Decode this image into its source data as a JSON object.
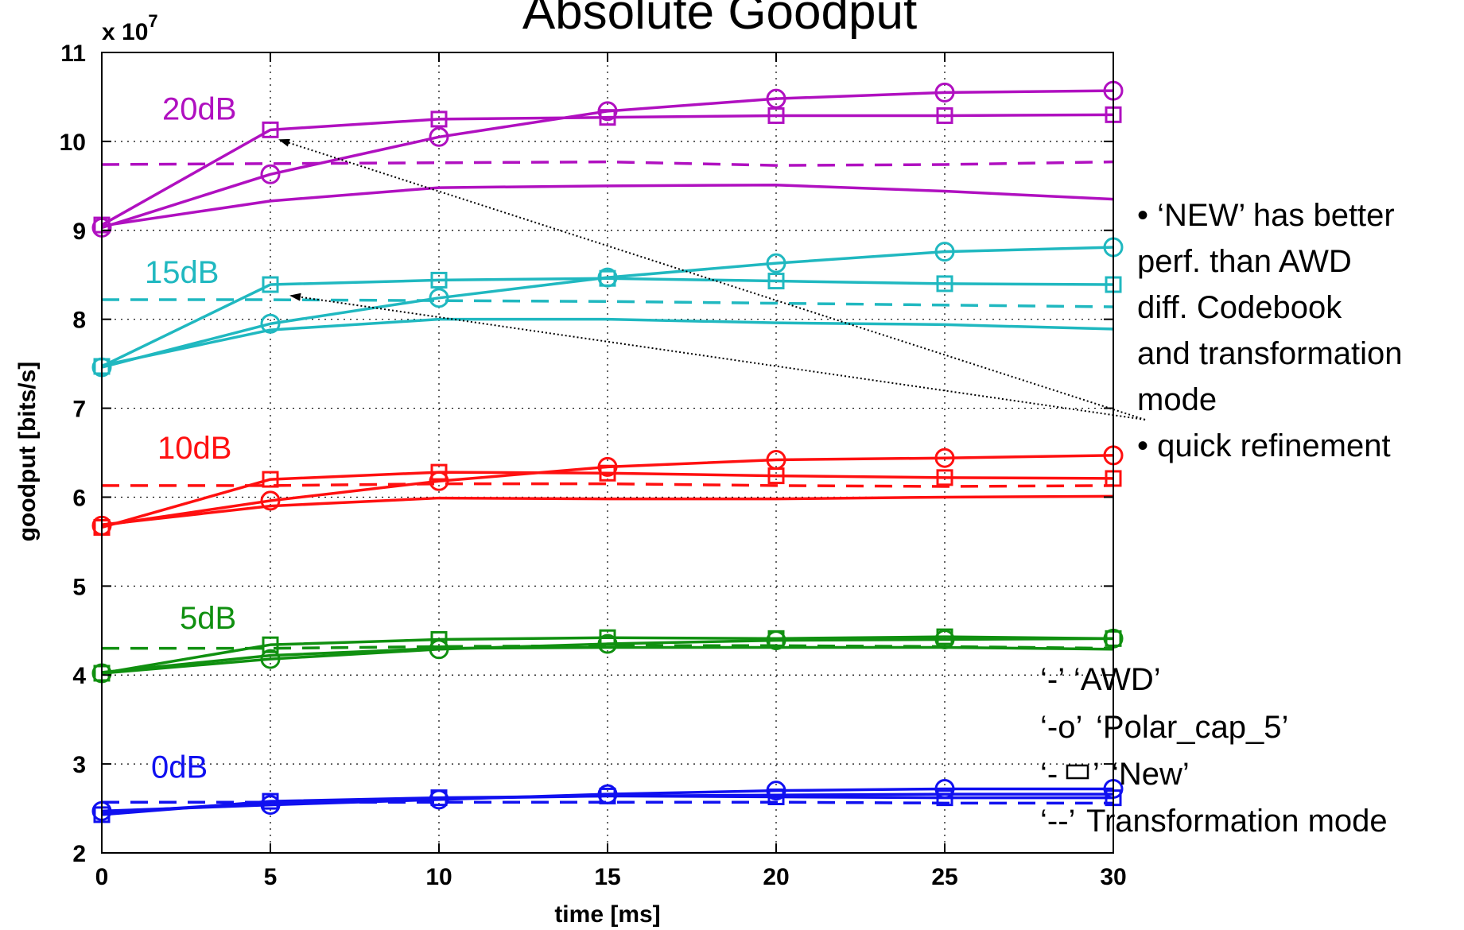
{
  "chart_data": {
    "type": "line",
    "title": "Absolute Goodput",
    "xlabel": "time [ms]",
    "ylabel": "goodput [bits/s]",
    "y_exponent_label": "x 10",
    "y_exponent_power": "7",
    "xlim": [
      0,
      30
    ],
    "ylim": [
      2,
      11
    ],
    "x_ticks": [
      0,
      5,
      10,
      15,
      20,
      25,
      30
    ],
    "y_ticks": [
      2,
      3,
      4,
      5,
      6,
      7,
      8,
      9,
      10,
      11
    ],
    "grid": true,
    "x": [
      0,
      5,
      10,
      15,
      20,
      25,
      30
    ],
    "groups": [
      {
        "label": "20dB",
        "color": "#b010c0",
        "awd": [
          9.05,
          9.33,
          9.48,
          9.5,
          9.51,
          9.44,
          9.35
        ],
        "polar": [
          9.03,
          9.63,
          10.05,
          10.34,
          10.48,
          10.55,
          10.57
        ],
        "new": [
          9.06,
          10.13,
          10.25,
          10.27,
          10.29,
          10.29,
          10.3
        ],
        "trans": [
          9.74,
          9.75,
          9.76,
          9.77,
          9.73,
          9.74,
          9.77
        ]
      },
      {
        "label": "15dB",
        "color": "#20b8c0",
        "awd": [
          7.48,
          7.88,
          8.0,
          8.0,
          7.96,
          7.94,
          7.89
        ],
        "polar": [
          7.46,
          7.95,
          8.24,
          8.47,
          8.63,
          8.76,
          8.81
        ],
        "new": [
          7.47,
          8.39,
          8.44,
          8.46,
          8.43,
          8.4,
          8.39
        ],
        "trans": [
          8.22,
          8.22,
          8.21,
          8.2,
          8.18,
          8.16,
          8.14
        ]
      },
      {
        "label": "10dB",
        "color": "#ff1010",
        "awd": [
          5.69,
          5.9,
          5.99,
          5.98,
          5.98,
          6.0,
          6.01
        ],
        "polar": [
          5.68,
          5.96,
          6.18,
          6.34,
          6.42,
          6.44,
          6.47
        ],
        "new": [
          5.66,
          6.2,
          6.28,
          6.27,
          6.24,
          6.22,
          6.21
        ],
        "trans": [
          6.13,
          6.13,
          6.15,
          6.15,
          6.13,
          6.12,
          6.13
        ]
      },
      {
        "label": "5dB",
        "color": "#109010",
        "awd": [
          4.03,
          4.22,
          4.3,
          4.31,
          4.31,
          4.31,
          4.29
        ],
        "polar": [
          4.02,
          4.18,
          4.29,
          4.35,
          4.39,
          4.4,
          4.41
        ],
        "new": [
          4.02,
          4.34,
          4.4,
          4.42,
          4.41,
          4.43,
          4.41
        ],
        "trans": [
          4.3,
          4.3,
          4.32,
          4.33,
          4.33,
          4.32,
          4.3
        ]
      },
      {
        "label": "0dB",
        "color": "#1010f0",
        "awd": [
          2.45,
          2.57,
          2.61,
          2.64,
          2.65,
          2.66,
          2.66
        ],
        "polar": [
          2.47,
          2.54,
          2.6,
          2.66,
          2.7,
          2.72,
          2.72
        ],
        "new": [
          2.43,
          2.58,
          2.62,
          2.64,
          2.63,
          2.62,
          2.62
        ],
        "trans": [
          2.57,
          2.57,
          2.57,
          2.57,
          2.57,
          2.56,
          2.56
        ]
      }
    ],
    "annotations": {
      "bullets": [
        [
          "• ‘NEW’ has better",
          "perf. than AWD",
          "diff. Codebook",
          "and transformation",
          "mode"
        ],
        [
          "• quick refinement"
        ]
      ],
      "legend": [
        {
          "key": "‘-’",
          "label": "‘AWD’"
        },
        {
          "key": "‘-o’",
          "label": "‘Polar_cap_5’"
        },
        {
          "key": "‘-",
          "key_suffix": "’",
          "label": "‘New’"
        },
        {
          "key": "‘--’",
          "label": "Transformation mode"
        }
      ]
    }
  }
}
